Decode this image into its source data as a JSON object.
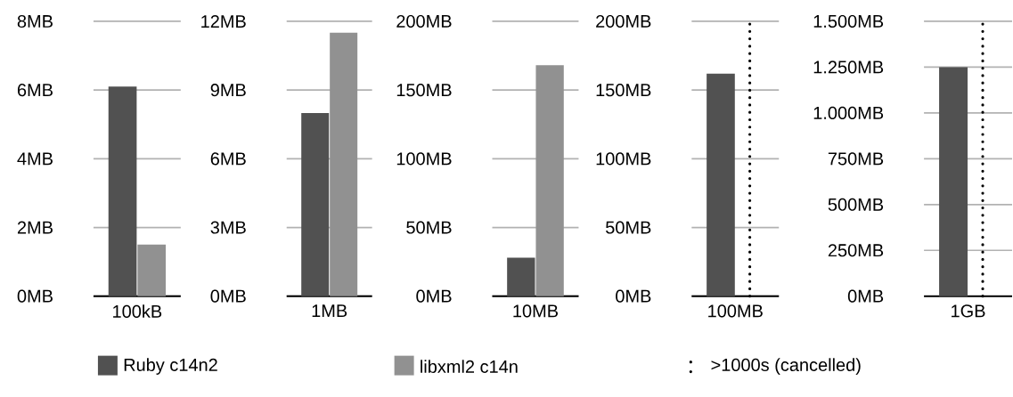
{
  "chart_data": [
    {
      "type": "bar",
      "categories": [
        "100kB"
      ],
      "ylim": [
        0,
        8
      ],
      "yticks": [
        {
          "value": 0,
          "label": "0MB"
        },
        {
          "value": 2,
          "label": "2MB"
        },
        {
          "value": 4,
          "label": "4MB"
        },
        {
          "value": 6,
          "label": "6MB"
        },
        {
          "value": 8,
          "label": "8MB"
        }
      ],
      "grid": "y",
      "legend": "bottom",
      "series": [
        {
          "name": "Ruby c14n2",
          "color": "#515151",
          "values": [
            6.1
          ]
        },
        {
          "name": "libxml2 c14n",
          "color": "#919191",
          "values": [
            1.5
          ]
        }
      ]
    },
    {
      "type": "bar",
      "categories": [
        "1MB"
      ],
      "ylim": [
        0,
        12
      ],
      "yticks": [
        {
          "value": 0,
          "label": "0MB"
        },
        {
          "value": 3,
          "label": "3MB"
        },
        {
          "value": 6,
          "label": "6MB"
        },
        {
          "value": 9,
          "label": "9MB"
        },
        {
          "value": 12,
          "label": "12MB"
        }
      ],
      "grid": "y",
      "series": [
        {
          "color": "#515151",
          "values": [
            8.0
          ]
        },
        {
          "color": "#919191",
          "values": [
            11.5
          ]
        }
      ]
    },
    {
      "type": "bar",
      "categories": [
        "10MB"
      ],
      "ylim": [
        0,
        200
      ],
      "yticks": [
        {
          "value": 0,
          "label": "0MB"
        },
        {
          "value": 50,
          "label": "50MB"
        },
        {
          "value": 100,
          "label": "100MB"
        },
        {
          "value": 150,
          "label": "150MB"
        },
        {
          "value": 200,
          "label": "200MB"
        }
      ],
      "grid": "y",
      "series": [
        {
          "color": "#515151",
          "values": [
            28
          ]
        },
        {
          "color": "#919191",
          "values": [
            168
          ]
        }
      ]
    },
    {
      "type": "bar",
      "categories": [
        "100MB"
      ],
      "ylim": [
        0,
        200
      ],
      "yticks": [
        {
          "value": 0,
          "label": "0MB"
        },
        {
          "value": 50,
          "label": "50MB"
        },
        {
          "value": 100,
          "label": "100MB"
        },
        {
          "value": 150,
          "label": "150MB"
        },
        {
          "value": 200,
          "label": "200MB"
        }
      ],
      "grid": "y",
      "series": [
        {
          "color": "#515151",
          "values": [
            162
          ]
        },
        {
          "color": "#919191",
          "values": [
            null
          ]
        }
      ],
      "ref_lines": [
        {
          "axis": "x",
          "value": "100MB",
          "color": "#000000",
          "line_style": "dotted"
        }
      ]
    },
    {
      "type": "bar",
      "categories": [
        "1GB"
      ],
      "ylim": [
        0,
        1500
      ],
      "yticks": [
        {
          "value": 0,
          "label": "0MB"
        },
        {
          "value": 250,
          "label": "250MB"
        },
        {
          "value": 500,
          "label": "500MB"
        },
        {
          "value": 750,
          "label": "750MB"
        },
        {
          "value": 1000,
          "label": "1.000MB"
        },
        {
          "value": 1250,
          "label": "1.250MB"
        },
        {
          "value": 1500,
          "label": "1.500MB"
        }
      ],
      "grid": "y",
      "series": [
        {
          "color": "#515151",
          "values": [
            1250
          ]
        },
        {
          "color": "#919191",
          "values": [
            null
          ]
        }
      ],
      "ref_lines": [
        {
          "axis": "x",
          "value": "1GB",
          "color": "#000000",
          "line_style": "dotted",
          "label": ">1000s (cancelled)"
        }
      ]
    }
  ]
}
